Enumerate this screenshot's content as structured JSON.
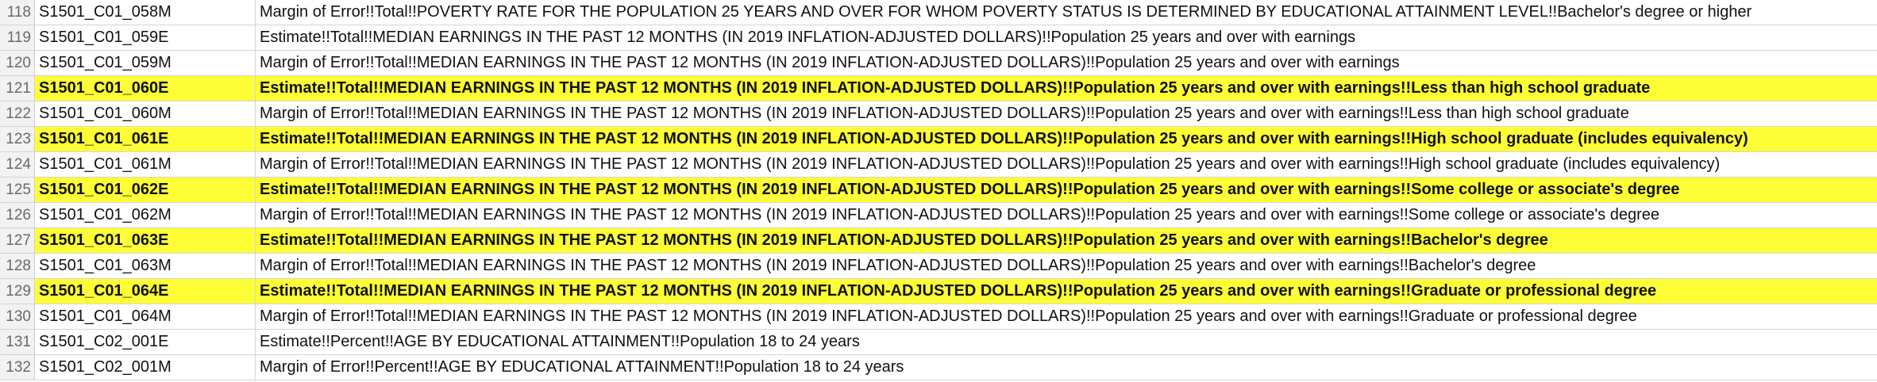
{
  "rows": [
    {
      "num": "118",
      "id": "S1501_C01_058M",
      "label": "Margin of Error!!Total!!POVERTY RATE FOR THE POPULATION 25 YEARS AND OVER FOR WHOM POVERTY STATUS IS DETERMINED BY EDUCATIONAL ATTAINMENT LEVEL!!Bachelor's degree or higher",
      "highlight": false
    },
    {
      "num": "119",
      "id": "S1501_C01_059E",
      "label": "Estimate!!Total!!MEDIAN EARNINGS IN THE PAST 12 MONTHS (IN 2019 INFLATION-ADJUSTED DOLLARS)!!Population 25 years and over with earnings",
      "highlight": false
    },
    {
      "num": "120",
      "id": "S1501_C01_059M",
      "label": "Margin of Error!!Total!!MEDIAN EARNINGS IN THE PAST 12 MONTHS (IN 2019 INFLATION-ADJUSTED DOLLARS)!!Population 25 years and over with earnings",
      "highlight": false
    },
    {
      "num": "121",
      "id": "S1501_C01_060E",
      "label": "Estimate!!Total!!MEDIAN EARNINGS IN THE PAST 12 MONTHS (IN 2019 INFLATION-ADJUSTED DOLLARS)!!Population 25 years and over with earnings!!Less than high school graduate",
      "highlight": true
    },
    {
      "num": "122",
      "id": "S1501_C01_060M",
      "label": "Margin of Error!!Total!!MEDIAN EARNINGS IN THE PAST 12 MONTHS (IN 2019 INFLATION-ADJUSTED DOLLARS)!!Population 25 years and over with earnings!!Less than high school graduate",
      "highlight": false
    },
    {
      "num": "123",
      "id": "S1501_C01_061E",
      "label": "Estimate!!Total!!MEDIAN EARNINGS IN THE PAST 12 MONTHS (IN 2019 INFLATION-ADJUSTED DOLLARS)!!Population 25 years and over with earnings!!High school graduate (includes equivalency)",
      "highlight": true
    },
    {
      "num": "124",
      "id": "S1501_C01_061M",
      "label": "Margin of Error!!Total!!MEDIAN EARNINGS IN THE PAST 12 MONTHS (IN 2019 INFLATION-ADJUSTED DOLLARS)!!Population 25 years and over with earnings!!High school graduate (includes equivalency)",
      "highlight": false
    },
    {
      "num": "125",
      "id": "S1501_C01_062E",
      "label": "Estimate!!Total!!MEDIAN EARNINGS IN THE PAST 12 MONTHS (IN 2019 INFLATION-ADJUSTED DOLLARS)!!Population 25 years and over with earnings!!Some college or associate's degree",
      "highlight": true
    },
    {
      "num": "126",
      "id": "S1501_C01_062M",
      "label": "Margin of Error!!Total!!MEDIAN EARNINGS IN THE PAST 12 MONTHS (IN 2019 INFLATION-ADJUSTED DOLLARS)!!Population 25 years and over with earnings!!Some college or associate's degree",
      "highlight": false
    },
    {
      "num": "127",
      "id": "S1501_C01_063E",
      "label": "Estimate!!Total!!MEDIAN EARNINGS IN THE PAST 12 MONTHS (IN 2019 INFLATION-ADJUSTED DOLLARS)!!Population 25 years and over with earnings!!Bachelor's degree",
      "highlight": true
    },
    {
      "num": "128",
      "id": "S1501_C01_063M",
      "label": "Margin of Error!!Total!!MEDIAN EARNINGS IN THE PAST 12 MONTHS (IN 2019 INFLATION-ADJUSTED DOLLARS)!!Population 25 years and over with earnings!!Bachelor's degree",
      "highlight": false
    },
    {
      "num": "129",
      "id": "S1501_C01_064E",
      "label": "Estimate!!Total!!MEDIAN EARNINGS IN THE PAST 12 MONTHS (IN 2019 INFLATION-ADJUSTED DOLLARS)!!Population 25 years and over with earnings!!Graduate or professional degree",
      "highlight": true
    },
    {
      "num": "130",
      "id": "S1501_C01_064M",
      "label": "Margin of Error!!Total!!MEDIAN EARNINGS IN THE PAST 12 MONTHS (IN 2019 INFLATION-ADJUSTED DOLLARS)!!Population 25 years and over with earnings!!Graduate or professional degree",
      "highlight": false
    },
    {
      "num": "131",
      "id": "S1501_C02_001E",
      "label": "Estimate!!Percent!!AGE BY EDUCATIONAL ATTAINMENT!!Population 18 to 24 years",
      "highlight": false
    },
    {
      "num": "132",
      "id": "S1501_C02_001M",
      "label": "Margin of Error!!Percent!!AGE BY EDUCATIONAL ATTAINMENT!!Population 18 to 24 years",
      "highlight": false
    }
  ],
  "colors": {
    "highlight": "#fefe37",
    "row_header_bg": "#f2f2f2",
    "gridline": "#d4d4d4"
  }
}
